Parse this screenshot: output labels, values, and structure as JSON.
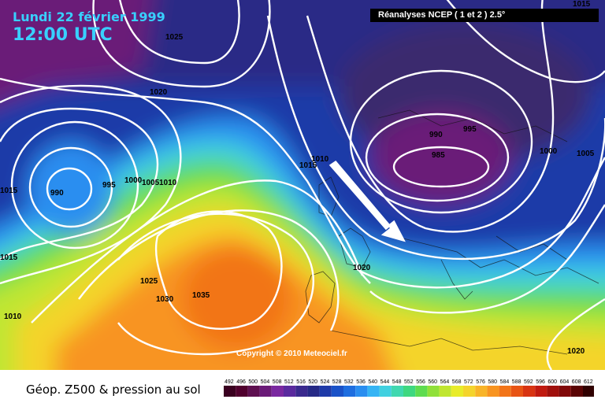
{
  "header": {
    "date": "Lundi 22 février 1999",
    "time": "12:00 UTC",
    "source": "Réanalyses NCEP ( 1 et 2 ) 2.5°"
  },
  "copyright": "Copyright © 2010 Meteociel.fr",
  "footer": {
    "title": "Géop. Z500 & pression au sol"
  },
  "legend": {
    "unit_values": [
      492,
      496,
      500,
      504,
      508,
      512,
      516,
      520,
      524,
      528,
      532,
      536,
      540,
      544,
      548,
      552,
      556,
      560,
      564,
      568,
      572,
      576,
      580,
      584,
      588,
      592,
      596,
      600,
      604,
      608,
      612
    ],
    "colors": [
      "#3a0020",
      "#50002e",
      "#5e1050",
      "#6a1a78",
      "#7a28a0",
      "#5a2a9e",
      "#3a2a8e",
      "#262a86",
      "#1e3aa8",
      "#1a52c8",
      "#1e6ee0",
      "#2a8ef0",
      "#36b4f4",
      "#40d0e0",
      "#40d8b0",
      "#3ed880",
      "#5edc50",
      "#90e03a",
      "#c0e630",
      "#e8ec2a",
      "#f4d42c",
      "#f8b428",
      "#f89420",
      "#f27418",
      "#e85414",
      "#d83412",
      "#c01a10",
      "#a0100c",
      "#800808",
      "#5a0404",
      "#300000"
    ]
  },
  "isobars": {
    "labels": [
      "1025",
      "1020",
      "1015",
      "995",
      "1000",
      "1005",
      "1010",
      "990",
      "1010",
      "1015",
      "1010",
      "1025",
      "1030",
      "1035",
      "1020",
      "990",
      "985",
      "995",
      "1000",
      "1005",
      "1015",
      "1020",
      "1015",
      "1010"
    ]
  }
}
